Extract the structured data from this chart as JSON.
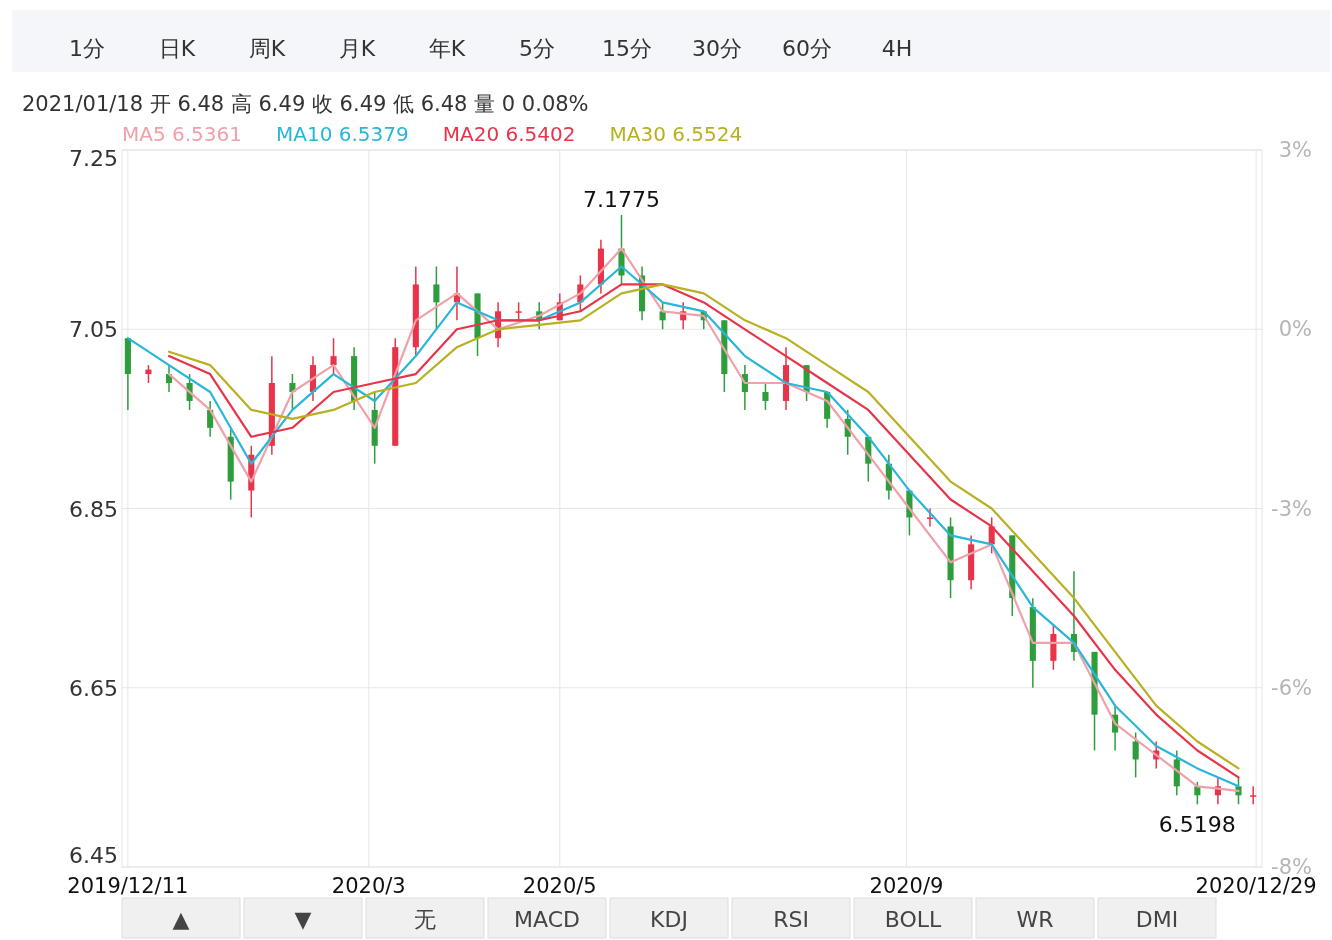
{
  "chart_data": {
    "type": "candlestick",
    "title": "2021/01/18 开 6.48 高 6.49 收 6.49 低 6.48 量 0 0.08%",
    "x": [
      "2019-12-11",
      "2019-12-18",
      "2019-12-25",
      "2020-01-01",
      "2020-01-08",
      "2020-01-15",
      "2020-01-22",
      "2020-01-29",
      "2020-02-05",
      "2020-02-12",
      "2020-02-19",
      "2020-02-26",
      "2020-03-04",
      "2020-03-11",
      "2020-03-18",
      "2020-03-25",
      "2020-04-01",
      "2020-04-08",
      "2020-04-15",
      "2020-04-22",
      "2020-04-29",
      "2020-05-06",
      "2020-05-13",
      "2020-05-20",
      "2020-05-27",
      "2020-06-03",
      "2020-06-10",
      "2020-06-17",
      "2020-06-24",
      "2020-07-01",
      "2020-07-08",
      "2020-07-15",
      "2020-07-22",
      "2020-07-29",
      "2020-08-05",
      "2020-08-12",
      "2020-08-19",
      "2020-08-26",
      "2020-09-02",
      "2020-09-09",
      "2020-09-16",
      "2020-09-23",
      "2020-09-30",
      "2020-10-07",
      "2020-10-14",
      "2020-10-21",
      "2020-10-28",
      "2020-11-04",
      "2020-11-11",
      "2020-11-18",
      "2020-11-25",
      "2020-12-02",
      "2020-12-09",
      "2020-12-16",
      "2020-12-23",
      "2020-12-28"
    ],
    "ohlc": [
      [
        7.04,
        7.04,
        6.96,
        7.0
      ],
      [
        7.0,
        7.01,
        6.99,
        7.005
      ],
      [
        7.0,
        7.01,
        6.98,
        6.99
      ],
      [
        6.99,
        7.0,
        6.96,
        6.97
      ],
      [
        6.96,
        6.97,
        6.93,
        6.94
      ],
      [
        6.93,
        6.94,
        6.86,
        6.88
      ],
      [
        6.87,
        6.92,
        6.84,
        6.91
      ],
      [
        6.92,
        7.02,
        6.91,
        6.99
      ],
      [
        6.99,
        7.0,
        6.96,
        6.98
      ],
      [
        6.98,
        7.02,
        6.97,
        7.01
      ],
      [
        7.01,
        7.04,
        7.0,
        7.02
      ],
      [
        7.02,
        7.03,
        6.96,
        6.97
      ],
      [
        6.96,
        6.98,
        6.9,
        6.92
      ],
      [
        6.92,
        7.04,
        6.92,
        7.03
      ],
      [
        7.03,
        7.12,
        7.02,
        7.1
      ],
      [
        7.1,
        7.12,
        7.05,
        7.08
      ],
      [
        7.08,
        7.12,
        7.06,
        7.09
      ],
      [
        7.09,
        7.09,
        7.02,
        7.04
      ],
      [
        7.04,
        7.08,
        7.03,
        7.07
      ],
      [
        7.07,
        7.08,
        7.06,
        7.07
      ],
      [
        7.07,
        7.08,
        7.05,
        7.06
      ],
      [
        7.06,
        7.09,
        7.06,
        7.08
      ],
      [
        7.08,
        7.11,
        7.07,
        7.1
      ],
      [
        7.1,
        7.15,
        7.09,
        7.14
      ],
      [
        7.14,
        7.1775,
        7.1,
        7.11
      ],
      [
        7.11,
        7.12,
        7.06,
        7.07
      ],
      [
        7.07,
        7.08,
        7.05,
        7.06
      ],
      [
        7.06,
        7.08,
        7.05,
        7.07
      ],
      [
        7.07,
        7.07,
        7.05,
        7.06
      ],
      [
        7.06,
        7.06,
        6.98,
        7.0
      ],
      [
        7.0,
        7.01,
        6.96,
        6.98
      ],
      [
        6.98,
        6.99,
        6.96,
        6.97
      ],
      [
        6.97,
        7.03,
        6.96,
        7.01
      ],
      [
        7.01,
        7.01,
        6.97,
        6.98
      ],
      [
        6.98,
        6.98,
        6.94,
        6.95
      ],
      [
        6.95,
        6.96,
        6.91,
        6.93
      ],
      [
        6.93,
        6.93,
        6.88,
        6.9
      ],
      [
        6.9,
        6.91,
        6.86,
        6.87
      ],
      [
        6.87,
        6.87,
        6.82,
        6.84
      ],
      [
        6.84,
        6.85,
        6.83,
        6.84
      ],
      [
        6.83,
        6.84,
        6.75,
        6.77
      ],
      [
        6.77,
        6.82,
        6.76,
        6.81
      ],
      [
        6.81,
        6.84,
        6.8,
        6.83
      ],
      [
        6.82,
        6.82,
        6.73,
        6.75
      ],
      [
        6.74,
        6.75,
        6.65,
        6.68
      ],
      [
        6.68,
        6.72,
        6.67,
        6.71
      ],
      [
        6.71,
        6.78,
        6.68,
        6.69
      ],
      [
        6.69,
        6.69,
        6.58,
        6.62
      ],
      [
        6.62,
        6.63,
        6.58,
        6.6
      ],
      [
        6.59,
        6.6,
        6.55,
        6.57
      ],
      [
        6.57,
        6.59,
        6.56,
        6.58
      ],
      [
        6.57,
        6.58,
        6.53,
        6.54
      ],
      [
        6.54,
        6.545,
        6.5198,
        6.53
      ],
      [
        6.53,
        6.55,
        6.52,
        6.54
      ],
      [
        6.54,
        6.55,
        6.52,
        6.53
      ],
      [
        6.53,
        6.54,
        6.52,
        6.53
      ]
    ],
    "series": [
      {
        "name": "MA5  6.5361",
        "type": "line",
        "color": "#f0a0a8",
        "x": [
          "2019-12-25",
          "2020-01-08",
          "2020-01-22",
          "2020-02-05",
          "2020-02-19",
          "2020-03-04",
          "2020-03-18",
          "2020-04-01",
          "2020-04-15",
          "2020-04-29",
          "2020-05-13",
          "2020-05-27",
          "2020-06-10",
          "2020-06-24",
          "2020-07-08",
          "2020-07-22",
          "2020-08-05",
          "2020-08-19",
          "2020-09-02",
          "2020-09-16",
          "2020-09-30",
          "2020-10-14",
          "2020-10-28",
          "2020-11-11",
          "2020-11-25",
          "2020-12-09",
          "2020-12-23"
        ],
        "values": [
          7.0,
          6.96,
          6.88,
          6.98,
          7.01,
          6.94,
          7.06,
          7.09,
          7.05,
          7.065,
          7.09,
          7.14,
          7.07,
          7.065,
          6.99,
          6.99,
          6.97,
          6.91,
          6.85,
          6.79,
          6.81,
          6.7,
          6.7,
          6.61,
          6.575,
          6.54,
          6.535
        ]
      },
      {
        "name": "MA10  6.5379",
        "type": "line",
        "color": "#29b6d8",
        "x": [
          "2019-12-11",
          "2019-12-25",
          "2020-01-08",
          "2020-01-22",
          "2020-02-05",
          "2020-02-19",
          "2020-03-04",
          "2020-03-18",
          "2020-04-01",
          "2020-04-15",
          "2020-04-29",
          "2020-05-13",
          "2020-05-27",
          "2020-06-10",
          "2020-06-24",
          "2020-07-08",
          "2020-07-22",
          "2020-08-05",
          "2020-08-19",
          "2020-09-02",
          "2020-09-16",
          "2020-09-30",
          "2020-10-14",
          "2020-10-28",
          "2020-11-11",
          "2020-11-25",
          "2020-12-09",
          "2020-12-23"
        ],
        "values": [
          7.04,
          7.01,
          6.98,
          6.9,
          6.96,
          7.0,
          6.97,
          7.02,
          7.08,
          7.06,
          7.06,
          7.08,
          7.12,
          7.08,
          7.07,
          7.02,
          6.99,
          6.98,
          6.93,
          6.87,
          6.82,
          6.81,
          6.74,
          6.7,
          6.63,
          6.585,
          6.56,
          6.54
        ]
      },
      {
        "name": "MA20  6.5402",
        "type": "line",
        "color": "#e8344a",
        "x": [
          "2019-12-25",
          "2020-01-08",
          "2020-01-22",
          "2020-02-05",
          "2020-02-19",
          "2020-03-04",
          "2020-03-18",
          "2020-04-01",
          "2020-04-15",
          "2020-04-29",
          "2020-05-13",
          "2020-05-27",
          "2020-06-10",
          "2020-06-24",
          "2020-07-08",
          "2020-07-22",
          "2020-08-05",
          "2020-08-19",
          "2020-09-02",
          "2020-09-16",
          "2020-09-30",
          "2020-10-14",
          "2020-10-28",
          "2020-11-11",
          "2020-11-25",
          "2020-12-09",
          "2020-12-23"
        ],
        "values": [
          7.02,
          7.0,
          6.93,
          6.94,
          6.98,
          6.99,
          7.0,
          7.05,
          7.06,
          7.06,
          7.07,
          7.1,
          7.1,
          7.08,
          7.05,
          7.02,
          6.99,
          6.96,
          6.91,
          6.86,
          6.83,
          6.78,
          6.73,
          6.67,
          6.62,
          6.58,
          6.55
        ]
      },
      {
        "name": "MA30  6.5524",
        "type": "line",
        "color": "#b8b020",
        "x": [
          "2019-12-25",
          "2020-01-08",
          "2020-01-22",
          "2020-02-05",
          "2020-02-19",
          "2020-03-04",
          "2020-03-18",
          "2020-04-01",
          "2020-04-15",
          "2020-04-29",
          "2020-05-13",
          "2020-05-27",
          "2020-06-10",
          "2020-06-24",
          "2020-07-08",
          "2020-07-22",
          "2020-08-05",
          "2020-08-19",
          "2020-09-02",
          "2020-09-16",
          "2020-09-30",
          "2020-10-14",
          "2020-10-28",
          "2020-11-11",
          "2020-11-25",
          "2020-12-09",
          "2020-12-23"
        ],
        "values": [
          7.025,
          7.01,
          6.96,
          6.95,
          6.96,
          6.98,
          6.99,
          7.03,
          7.05,
          7.055,
          7.06,
          7.09,
          7.1,
          7.09,
          7.06,
          7.04,
          7.01,
          6.98,
          6.93,
          6.88,
          6.85,
          6.8,
          6.75,
          6.69,
          6.63,
          6.59,
          6.56
        ]
      }
    ],
    "xlim": [
      "2019-12-09",
      "2020-12-31"
    ],
    "xticks": [
      {
        "value": "2019-12-11",
        "label": "2019/12/11"
      },
      {
        "value": "2020-03-02",
        "label": "2020/3"
      },
      {
        "value": "2020-05-06",
        "label": "2020/5"
      },
      {
        "value": "2020-09-01",
        "label": "2020/9"
      },
      {
        "value": "2020-12-29",
        "label": "2020/12/29"
      }
    ],
    "ylim": [
      6.45,
      7.25
    ],
    "yticks": [
      6.45,
      6.65,
      6.85,
      7.05,
      7.25
    ],
    "y2lim": [
      -8.37,
      2.99
    ],
    "y2ticks": [
      {
        "value": -8.37,
        "label": "-8%"
      },
      {
        "value": -5.53,
        "label": "-6%"
      },
      {
        "value": -2.69,
        "label": "-3%"
      },
      {
        "value": 0.16,
        "label": "0%"
      },
      {
        "value": 2.99,
        "label": "3%"
      }
    ],
    "grid": true,
    "legend": "top left",
    "marker": "none",
    "line_style": "solid",
    "annotations": [
      {
        "text": "7.1775",
        "x": "2020-05-27",
        "y": 7.1775
      },
      {
        "text": "6.5198",
        "x": "2020-12-09",
        "y": 6.5198
      },
      "1分",
      "日K",
      "周K",
      "月K",
      "年K",
      "5分",
      "15分",
      "30分",
      "60分",
      "4H",
      "▲",
      "▼",
      "无",
      "MACD",
      "KDJ",
      "RSI",
      "BOLL",
      "WR",
      "DMI"
    ]
  }
}
